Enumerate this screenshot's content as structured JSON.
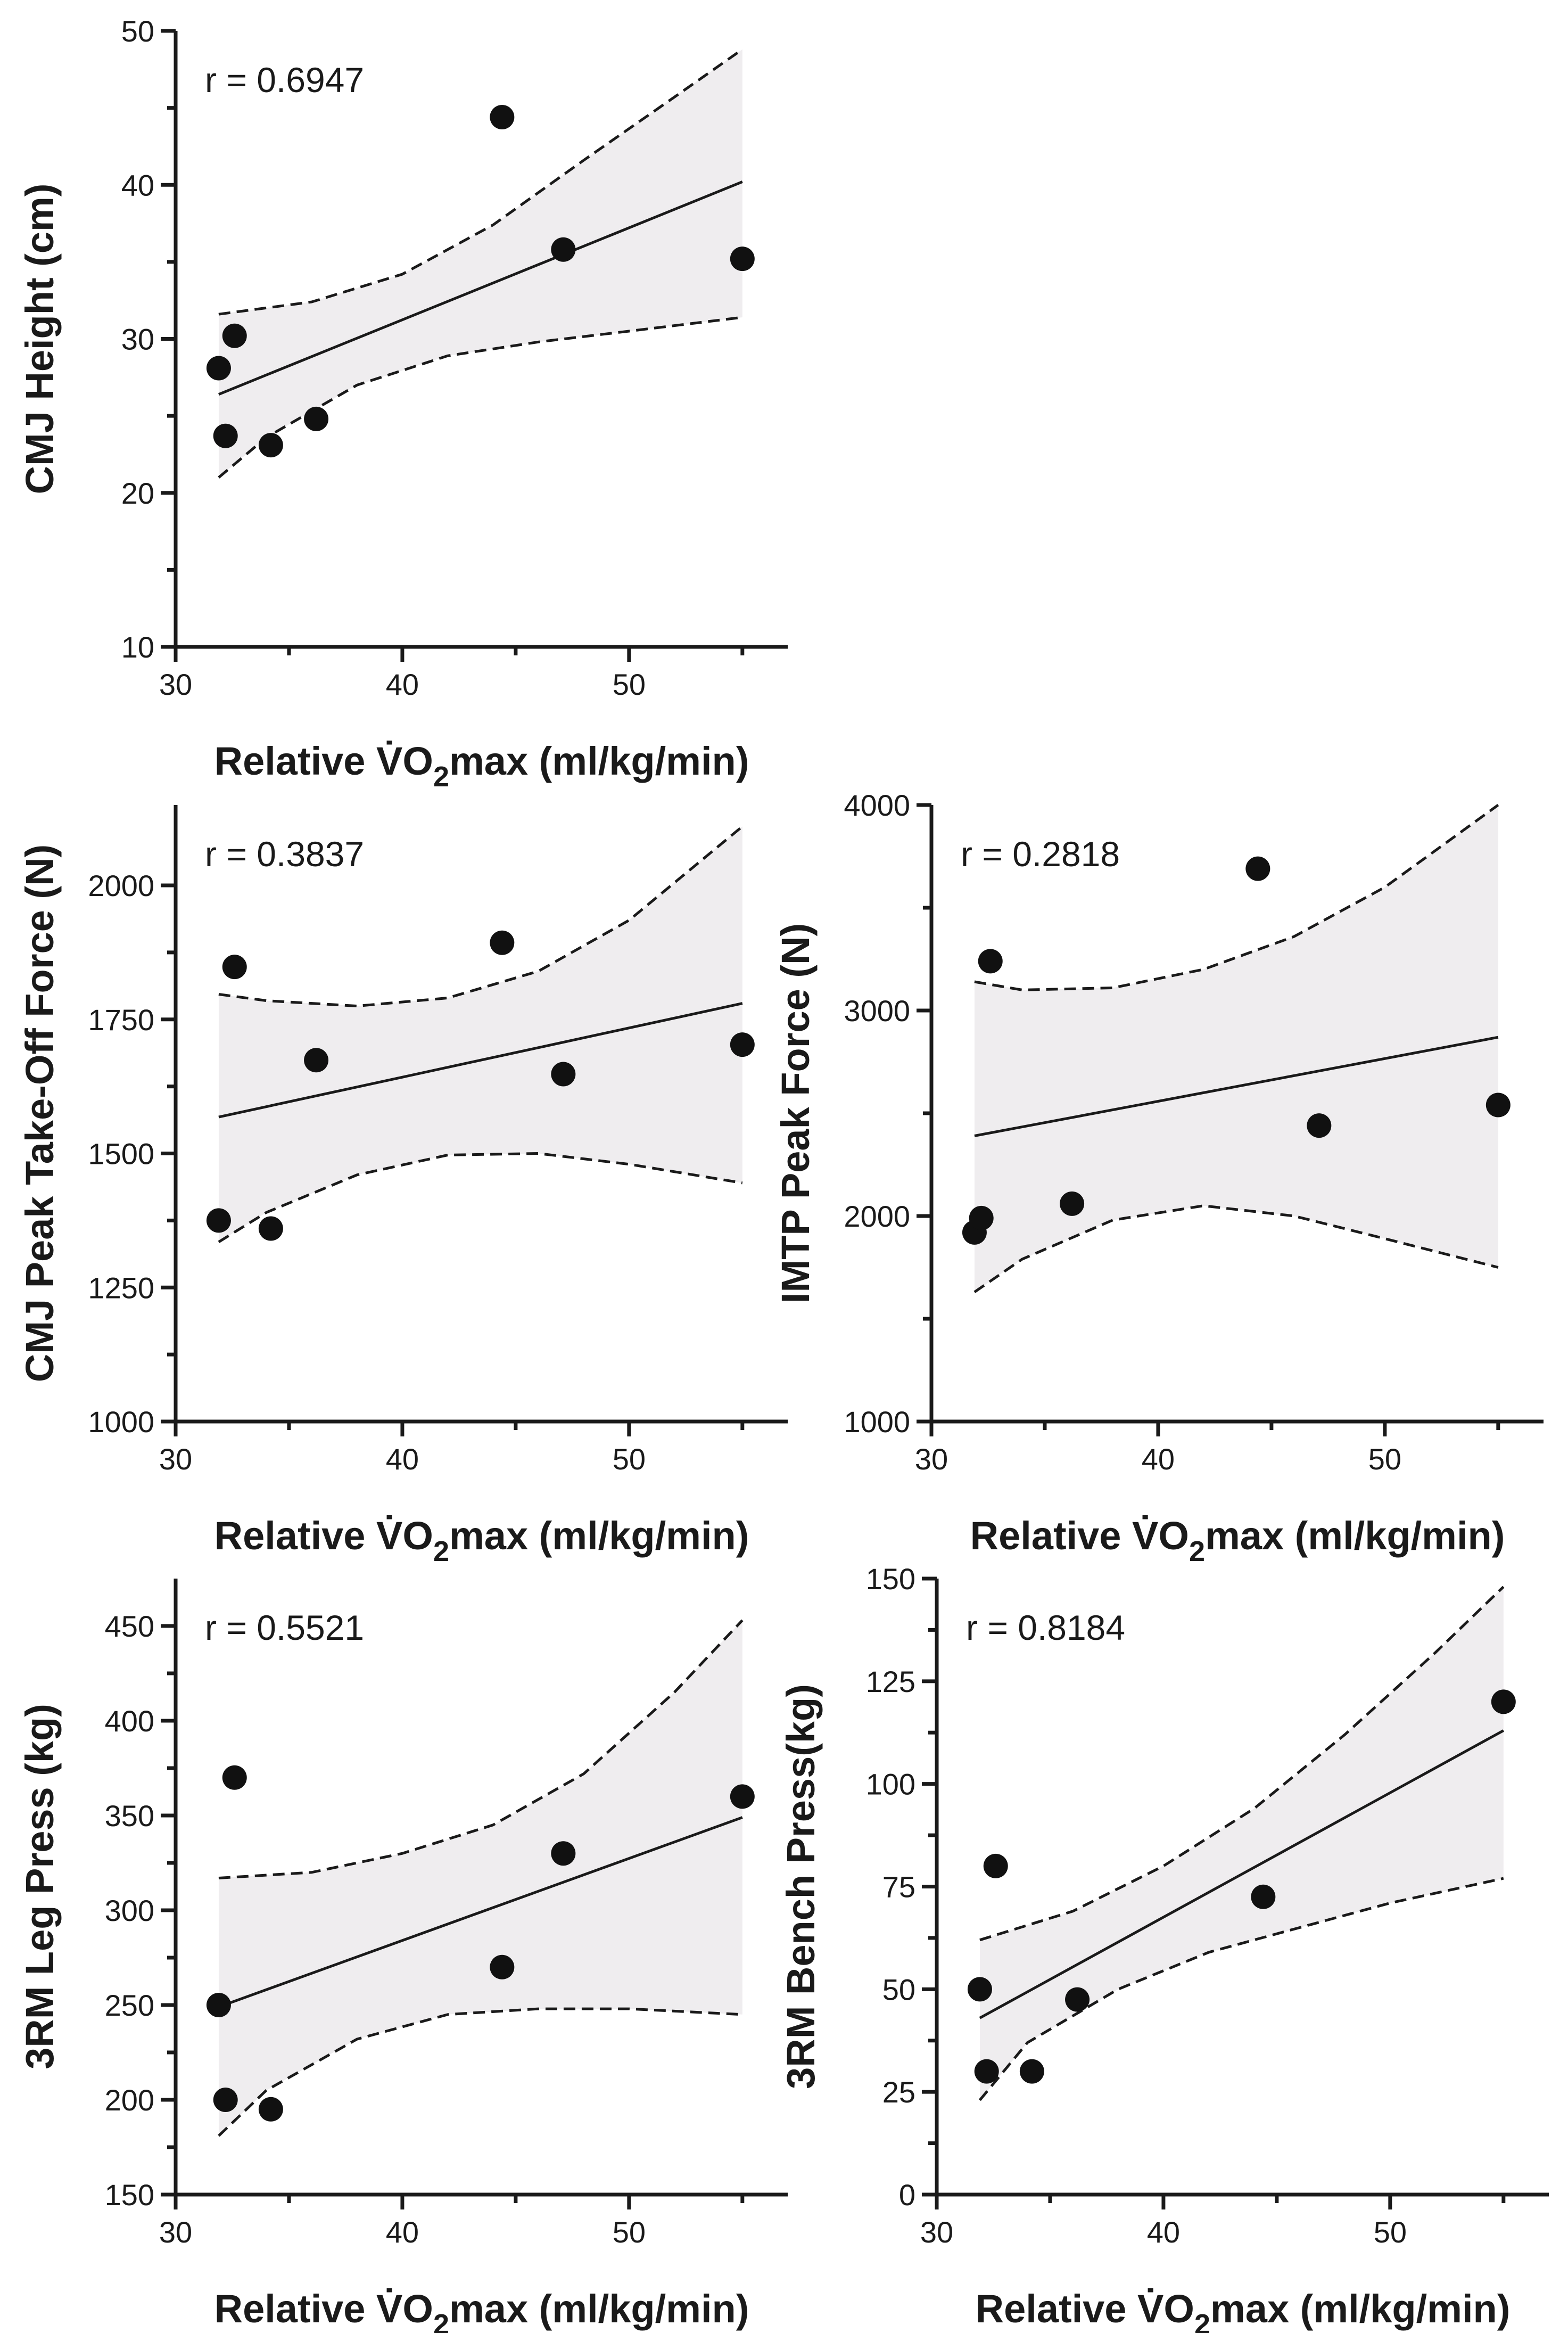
{
  "chart_data": [
    {
      "id": "cmj-height",
      "type": "scatter",
      "xlabel": "Relative V̇O₂max (ml/kg/min)",
      "xlabel_parts": [
        "Relative V̇O",
        "2",
        "max (ml/kg/min)"
      ],
      "ylabel": "CMJ Height (cm)",
      "annotation": "r = 0.6947",
      "xlim": [
        30,
        57
      ],
      "ylim": [
        10,
        50
      ],
      "xticks": [
        30,
        40,
        50
      ],
      "yticks": [
        10,
        20,
        30,
        40,
        50
      ],
      "ytick_labels": [
        "10",
        "20",
        "30",
        "40",
        "50"
      ],
      "points": [
        [
          31.9,
          28.1
        ],
        [
          32.2,
          23.7
        ],
        [
          32.6,
          30.2
        ],
        [
          34.2,
          23.1
        ],
        [
          36.2,
          24.8
        ],
        [
          44.4,
          44.4
        ],
        [
          47.1,
          35.8
        ],
        [
          55.0,
          35.2
        ]
      ],
      "fit": [
        [
          31.9,
          26.4
        ],
        [
          55.0,
          40.2
        ]
      ],
      "ci_upper": [
        [
          31.9,
          31.6
        ],
        [
          36.0,
          32.4
        ],
        [
          40.0,
          34.2
        ],
        [
          44.0,
          37.4
        ],
        [
          48.0,
          41.6
        ],
        [
          52.0,
          45.7
        ],
        [
          55.0,
          48.8
        ]
      ],
      "ci_lower": [
        [
          31.9,
          21.0
        ],
        [
          34.0,
          23.6
        ],
        [
          38.0,
          27.0
        ],
        [
          42.0,
          28.9
        ],
        [
          46.0,
          29.8
        ],
        [
          50.0,
          30.5
        ],
        [
          55.0,
          31.4
        ]
      ]
    },
    {
      "id": "cmj-peak-force",
      "type": "scatter",
      "xlabel": "Relative V̇O₂max (ml/kg/min)",
      "xlabel_parts": [
        "Relative V̇O",
        "2",
        "max (ml/kg/min)"
      ],
      "ylabel": "CMJ Peak Take-Off Force (N)",
      "annotation": "r = 0.3837",
      "xlim": [
        30,
        57
      ],
      "ylim": [
        1000,
        2150
      ],
      "xticks": [
        30,
        40,
        50
      ],
      "yticks": [
        1000,
        1250,
        1500,
        1750,
        2000
      ],
      "ytick_labels": [
        "1000",
        "1250",
        "1500",
        "1750",
        "2000"
      ],
      "points": [
        [
          31.9,
          1375
        ],
        [
          32.6,
          1848
        ],
        [
          34.2,
          1360
        ],
        [
          36.2,
          1674
        ],
        [
          44.4,
          1893
        ],
        [
          47.1,
          1648
        ],
        [
          55.0,
          1703
        ]
      ],
      "fit": [
        [
          31.9,
          1568
        ],
        [
          55.0,
          1780
        ]
      ],
      "ci_upper": [
        [
          31.9,
          1797
        ],
        [
          34.0,
          1785
        ],
        [
          38.0,
          1775
        ],
        [
          42.0,
          1790
        ],
        [
          46.0,
          1840
        ],
        [
          50.0,
          1935
        ],
        [
          55.0,
          2110
        ]
      ],
      "ci_lower": [
        [
          31.9,
          1335
        ],
        [
          34.0,
          1390
        ],
        [
          38.0,
          1460
        ],
        [
          42.0,
          1497
        ],
        [
          46.0,
          1500
        ],
        [
          50.0,
          1480
        ],
        [
          55.0,
          1445
        ]
      ]
    },
    {
      "id": "imtp-peak-force",
      "type": "scatter",
      "xlabel": "Relative V̇O₂max (ml/kg/min)",
      "xlabel_parts": [
        "Relative V̇O",
        "2",
        "max (ml/kg/min)"
      ],
      "ylabel": "IMTP Peak Force (N)",
      "annotation": "r = 0.2818",
      "xlim": [
        30,
        57
      ],
      "ylim": [
        1000,
        4000
      ],
      "xticks": [
        30,
        40,
        50
      ],
      "yticks": [
        1000,
        2000,
        3000,
        4000
      ],
      "ytick_labels": [
        "1000",
        "2000",
        "3000",
        "4000"
      ],
      "points": [
        [
          31.9,
          1920
        ],
        [
          32.2,
          1990
        ],
        [
          32.6,
          3240
        ],
        [
          36.2,
          2060
        ],
        [
          44.4,
          3690
        ],
        [
          47.1,
          2440
        ],
        [
          55.0,
          2540
        ]
      ],
      "fit": [
        [
          31.9,
          2390
        ],
        [
          55.0,
          2870
        ]
      ],
      "ci_upper": [
        [
          31.9,
          3140
        ],
        [
          34.0,
          3100
        ],
        [
          38.0,
          3110
        ],
        [
          42.0,
          3200
        ],
        [
          46.0,
          3360
        ],
        [
          50.0,
          3600
        ],
        [
          55.0,
          4000
        ]
      ],
      "ci_lower": [
        [
          31.9,
          1630
        ],
        [
          34.0,
          1790
        ],
        [
          38.0,
          1980
        ],
        [
          42.0,
          2050
        ],
        [
          46.0,
          2000
        ],
        [
          50.0,
          1890
        ],
        [
          55.0,
          1750
        ]
      ]
    },
    {
      "id": "leg-press",
      "type": "scatter",
      "xlabel": "Relative V̇O₂max (ml/kg/min)",
      "xlabel_parts": [
        "Relative V̇O",
        "2",
        "max (ml/kg/min)"
      ],
      "ylabel": "3RM Leg Press (kg)",
      "annotation": "r = 0.5521",
      "xlim": [
        30,
        57
      ],
      "ylim": [
        150,
        475
      ],
      "xticks": [
        30,
        40,
        50
      ],
      "yticks": [
        150,
        200,
        250,
        300,
        350,
        400,
        450
      ],
      "ytick_labels": [
        "150",
        "200",
        "250",
        "300",
        "350",
        "400",
        "450"
      ],
      "points": [
        [
          31.9,
          250
        ],
        [
          32.2,
          200
        ],
        [
          32.6,
          370
        ],
        [
          34.2,
          195
        ],
        [
          44.4,
          270
        ],
        [
          47.1,
          330
        ],
        [
          55.0,
          360
        ]
      ],
      "fit": [
        [
          31.9,
          249
        ],
        [
          55.0,
          349
        ]
      ],
      "ci_upper": [
        [
          31.9,
          317
        ],
        [
          36.0,
          320
        ],
        [
          40.0,
          330
        ],
        [
          44.0,
          345
        ],
        [
          48.0,
          372
        ],
        [
          52.0,
          415
        ],
        [
          55.0,
          453
        ]
      ],
      "ci_lower": [
        [
          31.9,
          181
        ],
        [
          34.0,
          205
        ],
        [
          38.0,
          232
        ],
        [
          42.0,
          245
        ],
        [
          46.0,
          248
        ],
        [
          50.0,
          248
        ],
        [
          55.0,
          245
        ]
      ]
    },
    {
      "id": "bench-press",
      "type": "scatter",
      "xlabel": "Relative V̇O₂max (ml/kg/min)",
      "xlabel_parts": [
        "Relative V̇O",
        "2",
        "max (ml/kg/min)"
      ],
      "ylabel": "3RM Bench Press(kg)",
      "annotation": "r = 0.8184",
      "xlim": [
        30,
        57
      ],
      "ylim": [
        0,
        150
      ],
      "xticks": [
        30,
        40,
        50
      ],
      "yticks": [
        0,
        25,
        50,
        75,
        100,
        125,
        150
      ],
      "ytick_labels": [
        "0",
        "25",
        "50",
        "75",
        "100",
        "125",
        "150"
      ],
      "points": [
        [
          31.9,
          50
        ],
        [
          32.2,
          30
        ],
        [
          32.6,
          80
        ],
        [
          34.2,
          30
        ],
        [
          36.2,
          47.5
        ],
        [
          44.4,
          72.5
        ],
        [
          55.0,
          120
        ]
      ],
      "fit": [
        [
          31.9,
          43
        ],
        [
          55.0,
          113
        ]
      ],
      "ci_upper": [
        [
          31.9,
          62
        ],
        [
          36.0,
          69
        ],
        [
          40.0,
          80
        ],
        [
          44.0,
          94
        ],
        [
          48.0,
          112
        ],
        [
          52.0,
          132
        ],
        [
          55.0,
          148
        ]
      ],
      "ci_lower": [
        [
          31.9,
          23
        ],
        [
          34.0,
          37
        ],
        [
          38.0,
          50
        ],
        [
          42.0,
          59
        ],
        [
          46.0,
          65
        ],
        [
          50.0,
          71
        ],
        [
          55.0,
          77
        ]
      ]
    }
  ]
}
